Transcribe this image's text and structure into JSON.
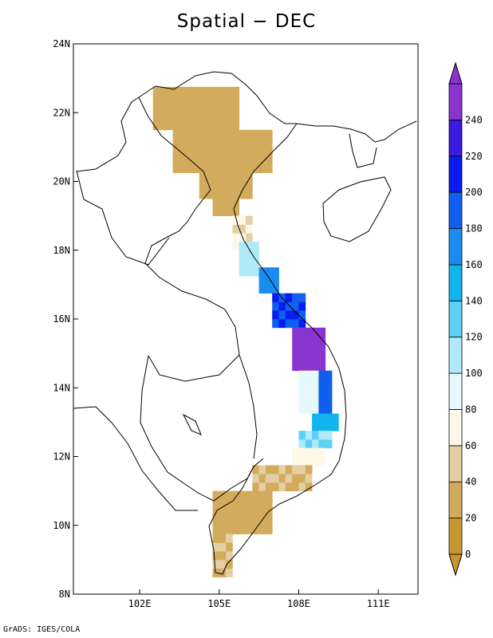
{
  "title": "Spatial − DEC",
  "credit": "GrADS: IGES/COLA",
  "axes": {
    "x_ticks": [
      {
        "value": 102,
        "label": "102E"
      },
      {
        "value": 105,
        "label": "105E"
      },
      {
        "value": 108,
        "label": "108E"
      },
      {
        "value": 111,
        "label": "111E"
      }
    ],
    "y_ticks": [
      {
        "value": 8,
        "label": "8N"
      },
      {
        "value": 10,
        "label": "10N"
      },
      {
        "value": 12,
        "label": "12N"
      },
      {
        "value": 14,
        "label": "14N"
      },
      {
        "value": 16,
        "label": "16N"
      },
      {
        "value": 18,
        "label": "18N"
      },
      {
        "value": 20,
        "label": "20N"
      },
      {
        "value": 22,
        "label": "22N"
      },
      {
        "value": 24,
        "label": "24N"
      }
    ]
  },
  "colorbar": {
    "levels": [
      {
        "value": 0,
        "label": "0",
        "color": "#c8962e"
      },
      {
        "value": 20,
        "label": "20",
        "color": "#d2ac5c"
      },
      {
        "value": 40,
        "label": "40",
        "color": "#e4cfa5"
      },
      {
        "value": 60,
        "label": "60",
        "color": "#fdf8e8"
      },
      {
        "value": 80,
        "label": "80",
        "color": "#e6f8fc"
      },
      {
        "value": 100,
        "label": "100",
        "color": "#b0eafa"
      },
      {
        "value": 120,
        "label": "120",
        "color": "#5cd0f5"
      },
      {
        "value": 140,
        "label": "140",
        "color": "#12b4ee"
      },
      {
        "value": 160,
        "label": "160",
        "color": "#1a8cf0"
      },
      {
        "value": 180,
        "label": "180",
        "color": "#1060f0"
      },
      {
        "value": 200,
        "label": "200",
        "color": "#0a1cf0"
      },
      {
        "value": 220,
        "label": "220",
        "color": "#3c1ae0"
      },
      {
        "value": 240,
        "label": "240",
        "color": "#8a34d0"
      }
    ],
    "under_color": "#c8962e",
    "over_color": "#8a34d0"
  },
  "chart_data": {
    "type": "heatmap",
    "title": "Spatial − DEC",
    "lon_range": [
      99.5,
      112.5
    ],
    "lat_range": [
      8,
      24
    ],
    "grid_cell_deg": 0.25,
    "regions": [
      {
        "lat": [
          21.5,
          22.75
        ],
        "lon": [
          102.5,
          105.75
        ],
        "value": 30
      },
      {
        "lat": [
          20.25,
          21.5
        ],
        "lon": [
          103.25,
          107.0
        ],
        "value": 30
      },
      {
        "lat": [
          19.5,
          20.25
        ],
        "lon": [
          104.25,
          106.25
        ],
        "value": 30
      },
      {
        "lat": [
          19.0,
          19.5
        ],
        "lon": [
          104.75,
          105.75
        ],
        "value": 35
      },
      {
        "lat": [
          18.0,
          19.0
        ],
        "lon": [
          105.5,
          106.25
        ],
        "value": 60
      },
      {
        "lat": [
          17.25,
          18.25
        ],
        "lon": [
          105.75,
          106.5
        ],
        "value": 110
      },
      {
        "lat": [
          16.75,
          17.5
        ],
        "lon": [
          106.5,
          107.25
        ],
        "value": 165
      },
      {
        "lat": [
          15.75,
          16.75
        ],
        "lon": [
          107.0,
          108.25
        ],
        "value": 200
      },
      {
        "lat": [
          14.5,
          15.75
        ],
        "lon": [
          107.75,
          109.0
        ],
        "value": 245
      },
      {
        "lat": [
          13.25,
          14.5
        ],
        "lon": [
          108.0,
          108.75
        ],
        "value": 85
      },
      {
        "lat": [
          13.25,
          14.5
        ],
        "lon": [
          108.75,
          109.25
        ],
        "value": 195
      },
      {
        "lat": [
          12.75,
          13.25
        ],
        "lon": [
          108.5,
          109.5
        ],
        "value": 150
      },
      {
        "lat": [
          12.25,
          12.75
        ],
        "lon": [
          108.0,
          109.25
        ],
        "value": 120
      },
      {
        "lat": [
          11.75,
          12.25
        ],
        "lon": [
          107.75,
          109.0
        ],
        "value": 65
      },
      {
        "lat": [
          11.0,
          11.75
        ],
        "lon": [
          106.25,
          108.5
        ],
        "value": 40
      },
      {
        "lat": [
          9.75,
          11.0
        ],
        "lon": [
          104.75,
          107.0
        ],
        "value": 30
      },
      {
        "lat": [
          8.5,
          9.75
        ],
        "lon": [
          104.75,
          105.5
        ],
        "value": 40
      }
    ]
  }
}
